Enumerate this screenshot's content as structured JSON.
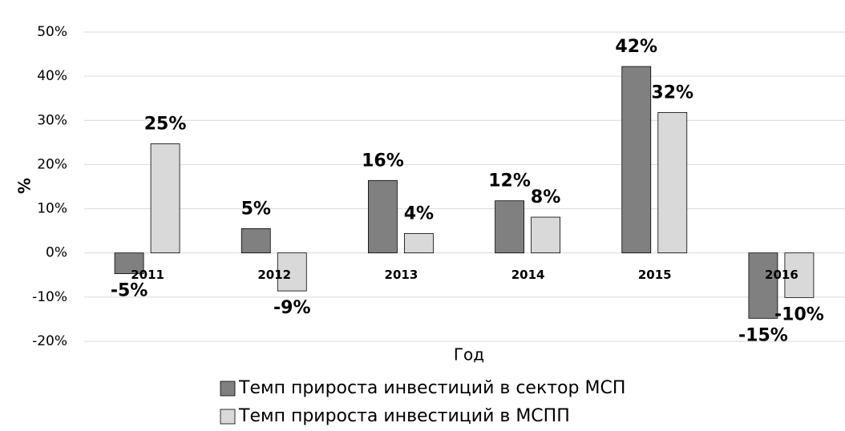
{
  "chart_data": {
    "type": "bar",
    "categories": [
      "2011",
      "2012",
      "2013",
      "2014",
      "2015",
      "2016"
    ],
    "series": [
      {
        "name": "Темп прироста инвестиций в сектор МСП",
        "color": "#808080",
        "values": [
          -4.7,
          5.5,
          16.4,
          11.8,
          42.2,
          -14.8
        ],
        "value_labels": [
          "-5%",
          "5%",
          "16%",
          "12%",
          "42%",
          "-15%"
        ]
      },
      {
        "name": "Темп прироста инвестиций в МСПП",
        "color": "#d9d9d9",
        "values": [
          24.7,
          -8.6,
          4.4,
          8.1,
          31.8,
          -10.1
        ],
        "value_labels": [
          "25%",
          "-9%",
          "4%",
          "8%",
          "32%",
          "-10%"
        ]
      }
    ],
    "xlabel": "Год",
    "ylabel": "%",
    "ylim": [
      -20,
      50
    ],
    "yticks": [
      {
        "value": -20,
        "label": "-20%"
      },
      {
        "value": -10,
        "label": "-10%"
      },
      {
        "value": 0,
        "label": "0%"
      },
      {
        "value": 10,
        "label": "10%"
      },
      {
        "value": 20,
        "label": "20%"
      },
      {
        "value": 30,
        "label": "30%"
      },
      {
        "value": 40,
        "label": "40%"
      },
      {
        "value": 50,
        "label": "50%"
      }
    ],
    "grid": true,
    "legend": "bottom"
  }
}
